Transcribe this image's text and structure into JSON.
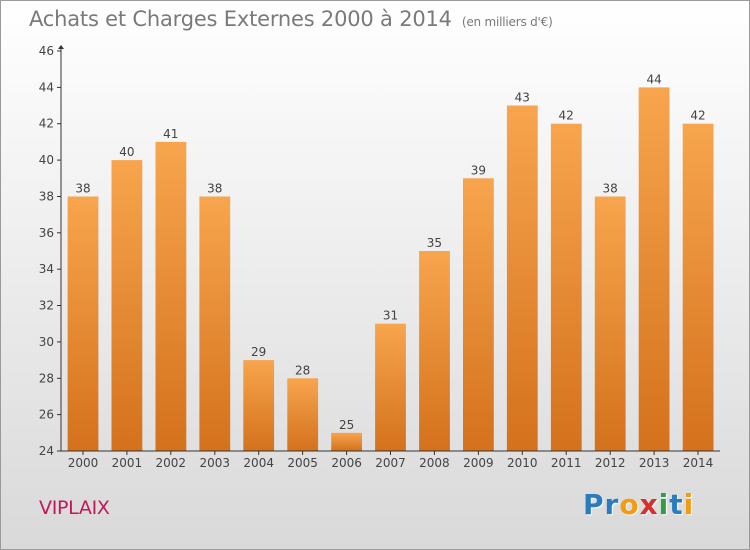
{
  "header": {
    "title": "Achats et Charges Externes 2000 à 2014",
    "unit": "(en milliers d'€)"
  },
  "footer": {
    "commune": "VIPLAIX",
    "logo_letters": [
      "P",
      "r",
      "o",
      "x",
      "i",
      "t",
      "i"
    ],
    "logo_colors": [
      "#2b7bc0",
      "#2b7bc0",
      "#f39c12",
      "#d62f2f",
      "#2f9e44",
      "#2b7bc0",
      "#f39c12"
    ]
  },
  "chart_data": {
    "type": "bar",
    "categories": [
      "2000",
      "2001",
      "2002",
      "2003",
      "2004",
      "2005",
      "2006",
      "2007",
      "2008",
      "2009",
      "2010",
      "2011",
      "2012",
      "2013",
      "2014"
    ],
    "values": [
      38,
      40,
      41,
      38,
      29,
      28,
      25,
      31,
      35,
      39,
      43,
      42,
      38,
      44,
      42
    ],
    "title": "Achats et Charges Externes 2000 à 2014",
    "ylim": [
      24,
      46
    ],
    "yticks": [
      24,
      26,
      28,
      30,
      32,
      34,
      36,
      38,
      40,
      42,
      44,
      46
    ],
    "grid": false,
    "colors": {
      "bar_light": "#f7a54e",
      "bar_dark": "#d4711c",
      "axis": "#333333",
      "text": "#444444"
    }
  }
}
